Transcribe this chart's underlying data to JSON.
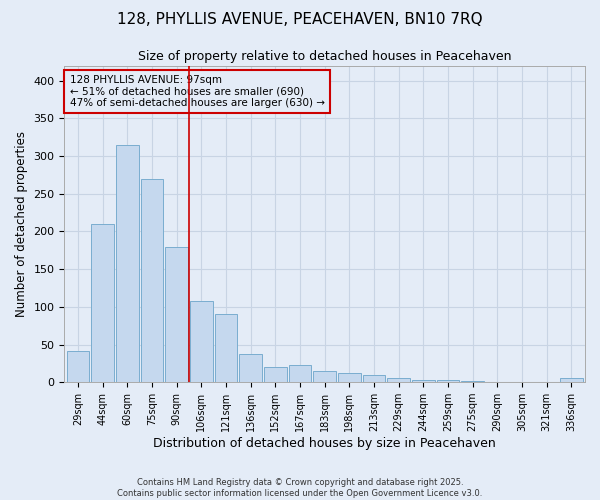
{
  "title": "128, PHYLLIS AVENUE, PEACEHAVEN, BN10 7RQ",
  "subtitle": "Size of property relative to detached houses in Peacehaven",
  "xlabel": "Distribution of detached houses by size in Peacehaven",
  "ylabel": "Number of detached properties",
  "categories": [
    "29sqm",
    "44sqm",
    "60sqm",
    "75sqm",
    "90sqm",
    "106sqm",
    "121sqm",
    "136sqm",
    "152sqm",
    "167sqm",
    "183sqm",
    "198sqm",
    "213sqm",
    "229sqm",
    "244sqm",
    "259sqm",
    "275sqm",
    "290sqm",
    "305sqm",
    "321sqm",
    "336sqm"
  ],
  "values": [
    42,
    210,
    315,
    270,
    180,
    108,
    90,
    37,
    20,
    23,
    15,
    12,
    10,
    5,
    3,
    3,
    1,
    0,
    0,
    0,
    5
  ],
  "bar_color": "#c5d8ee",
  "bar_edgecolor": "#7aadcf",
  "grid_color": "#c8d4e4",
  "background_color": "#e4ecf7",
  "property_line_x": 4.5,
  "annotation_text": "128 PHYLLIS AVENUE: 97sqm\n← 51% of detached houses are smaller (690)\n47% of semi-detached houses are larger (630) →",
  "annotation_box_color": "#cc0000",
  "footer_line1": "Contains HM Land Registry data © Crown copyright and database right 2025.",
  "footer_line2": "Contains public sector information licensed under the Open Government Licence v3.0.",
  "ylim": [
    0,
    420
  ],
  "yticks": [
    0,
    50,
    100,
    150,
    200,
    250,
    300,
    350,
    400
  ],
  "title_fontsize": 11,
  "subtitle_fontsize": 9,
  "annotation_fontsize": 7.5
}
